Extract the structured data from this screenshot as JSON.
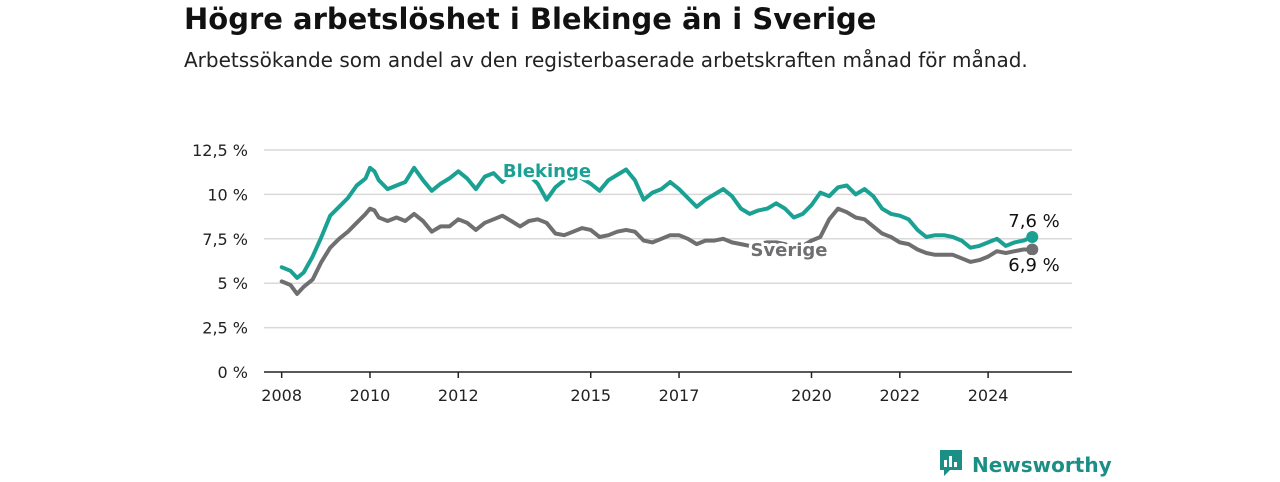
{
  "title": "Högre arbetslöshet i Blekinge än i Sverige",
  "subtitle": "Arbetssökande som andel av den registerbaserade arbetskraften månad för månad.",
  "brand": {
    "name": "Newsworthy",
    "icon": "newsworthy-logo-icon"
  },
  "colors": {
    "blekinge": "#1aa193",
    "sverige": "#6f6f71",
    "grid": "#d9d9d9",
    "axis": "#222222"
  },
  "chart_data": {
    "type": "line",
    "title": "Högre arbetslöshet i Blekinge än i Sverige",
    "subtitle": "Arbetssökande som andel av den registerbaserade arbetskraften månad för månad.",
    "xlabel": "",
    "ylabel": "",
    "ylim": [
      0,
      12.5
    ],
    "xlim": [
      2007.6,
      2025.9
    ],
    "yticks": [
      0,
      2.5,
      5,
      7.5,
      10,
      12.5
    ],
    "ytick_labels": [
      "0 %",
      "2,5 %",
      "5 %",
      "7,5 %",
      "10 %",
      "12,5 %"
    ],
    "xticks": [
      2008,
      2010,
      2012,
      2015,
      2017,
      2020,
      2022,
      2024
    ],
    "xtick_labels": [
      "2008",
      "2010",
      "2012",
      "2015",
      "2017",
      "2020",
      "2022",
      "2024"
    ],
    "grid": true,
    "legend": "inline labels",
    "series": [
      {
        "name": "Blekinge",
        "end_label": "7,6 %",
        "x": [
          2008.0,
          2008.2,
          2008.35,
          2008.5,
          2008.7,
          2008.9,
          2009.1,
          2009.3,
          2009.5,
          2009.7,
          2009.9,
          2010.0,
          2010.1,
          2010.2,
          2010.4,
          2010.6,
          2010.8,
          2011.0,
          2011.2,
          2011.4,
          2011.6,
          2011.8,
          2012.0,
          2012.2,
          2012.4,
          2012.6,
          2012.8,
          2013.0,
          2013.2,
          2013.4,
          2013.6,
          2013.8,
          2014.0,
          2014.2,
          2014.4,
          2014.6,
          2014.8,
          2015.0,
          2015.2,
          2015.4,
          2015.6,
          2015.8,
          2016.0,
          2016.2,
          2016.4,
          2016.6,
          2016.8,
          2017.0,
          2017.2,
          2017.4,
          2017.6,
          2017.8,
          2018.0,
          2018.2,
          2018.4,
          2018.6,
          2018.8,
          2019.0,
          2019.2,
          2019.4,
          2019.6,
          2019.8,
          2020.0,
          2020.2,
          2020.4,
          2020.6,
          2020.8,
          2021.0,
          2021.2,
          2021.4,
          2021.6,
          2021.8,
          2022.0,
          2022.2,
          2022.4,
          2022.6,
          2022.8,
          2023.0,
          2023.2,
          2023.4,
          2023.6,
          2023.8,
          2024.0,
          2024.2,
          2024.4,
          2024.6,
          2024.8,
          2025.0
        ],
        "y": [
          5.9,
          5.7,
          5.3,
          5.6,
          6.5,
          7.6,
          8.8,
          9.3,
          9.8,
          10.5,
          10.9,
          11.5,
          11.3,
          10.8,
          10.3,
          10.5,
          10.7,
          11.5,
          10.8,
          10.2,
          10.6,
          10.9,
          11.3,
          10.9,
          10.3,
          11.0,
          11.2,
          10.7,
          11.3,
          11.3,
          11.1,
          10.6,
          9.7,
          10.4,
          10.8,
          11.1,
          10.9,
          10.6,
          10.2,
          10.8,
          11.1,
          11.4,
          10.8,
          9.7,
          10.1,
          10.3,
          10.7,
          10.3,
          9.8,
          9.3,
          9.7,
          10.0,
          10.3,
          9.9,
          9.2,
          8.9,
          9.1,
          9.2,
          9.5,
          9.2,
          8.7,
          8.9,
          9.4,
          10.1,
          9.9,
          10.4,
          10.5,
          10.0,
          10.3,
          9.9,
          9.2,
          8.9,
          8.8,
          8.6,
          8.0,
          7.6,
          7.7,
          7.7,
          7.6,
          7.4,
          7.0,
          7.1,
          7.3,
          7.5,
          7.1,
          7.3,
          7.4,
          7.6
        ]
      },
      {
        "name": "Sverige",
        "end_label": "6,9 %",
        "x": [
          2008.0,
          2008.2,
          2008.35,
          2008.5,
          2008.7,
          2008.9,
          2009.1,
          2009.3,
          2009.5,
          2009.7,
          2009.9,
          2010.0,
          2010.1,
          2010.2,
          2010.4,
          2010.6,
          2010.8,
          2011.0,
          2011.2,
          2011.4,
          2011.6,
          2011.8,
          2012.0,
          2012.2,
          2012.4,
          2012.6,
          2012.8,
          2013.0,
          2013.2,
          2013.4,
          2013.6,
          2013.8,
          2014.0,
          2014.2,
          2014.4,
          2014.6,
          2014.8,
          2015.0,
          2015.2,
          2015.4,
          2015.6,
          2015.8,
          2016.0,
          2016.2,
          2016.4,
          2016.6,
          2016.8,
          2017.0,
          2017.2,
          2017.4,
          2017.6,
          2017.8,
          2018.0,
          2018.2,
          2018.4,
          2018.6,
          2018.8,
          2019.0,
          2019.2,
          2019.4,
          2019.6,
          2019.8,
          2020.0,
          2020.2,
          2020.4,
          2020.6,
          2020.8,
          2021.0,
          2021.2,
          2021.4,
          2021.6,
          2021.8,
          2022.0,
          2022.2,
          2022.4,
          2022.6,
          2022.8,
          2023.0,
          2023.2,
          2023.4,
          2023.6,
          2023.8,
          2024.0,
          2024.2,
          2024.4,
          2024.6,
          2024.8,
          2025.0
        ],
        "y": [
          5.1,
          4.9,
          4.4,
          4.8,
          5.2,
          6.2,
          7.0,
          7.5,
          7.9,
          8.4,
          8.9,
          9.2,
          9.1,
          8.7,
          8.5,
          8.7,
          8.5,
          8.9,
          8.5,
          7.9,
          8.2,
          8.2,
          8.6,
          8.4,
          8.0,
          8.4,
          8.6,
          8.8,
          8.5,
          8.2,
          8.5,
          8.6,
          8.4,
          7.8,
          7.7,
          7.9,
          8.1,
          8.0,
          7.6,
          7.7,
          7.9,
          8.0,
          7.9,
          7.4,
          7.3,
          7.5,
          7.7,
          7.7,
          7.5,
          7.2,
          7.4,
          7.4,
          7.5,
          7.3,
          7.2,
          7.1,
          7.2,
          7.3,
          7.3,
          7.2,
          7.0,
          7.1,
          7.4,
          7.6,
          8.6,
          9.2,
          9.0,
          8.7,
          8.6,
          8.2,
          7.8,
          7.6,
          7.3,
          7.2,
          6.9,
          6.7,
          6.6,
          6.6,
          6.6,
          6.4,
          6.2,
          6.3,
          6.5,
          6.8,
          6.7,
          6.8,
          6.9,
          6.9
        ]
      }
    ]
  }
}
